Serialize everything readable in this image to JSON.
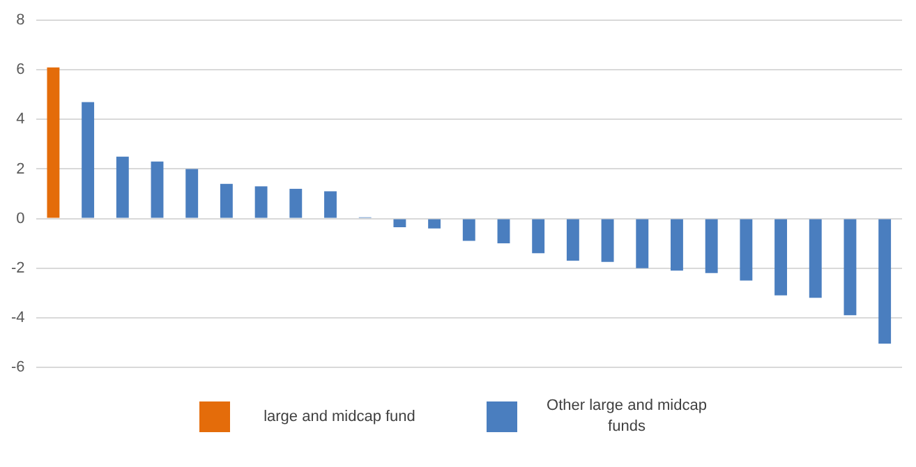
{
  "chart_data": {
    "type": "bar",
    "categories": [
      null,
      null,
      null,
      null,
      null,
      null,
      null,
      null,
      null,
      null,
      null,
      null,
      null,
      null,
      null,
      null,
      null,
      null,
      null,
      null,
      null,
      null,
      null,
      null,
      null
    ],
    "series": [
      {
        "name": "large and midcap fund",
        "color": "#e46c0a",
        "values": [
          6.1,
          null,
          null,
          null,
          null,
          null,
          null,
          null,
          null,
          null,
          null,
          null,
          null,
          null,
          null,
          null,
          null,
          null,
          null,
          null,
          null,
          null,
          null,
          null,
          null
        ]
      },
      {
        "name": "Other large and midcap funds",
        "color": "#4a7ebf",
        "values": [
          null,
          4.7,
          2.5,
          2.3,
          2.0,
          1.4,
          1.3,
          1.2,
          1.1,
          0.05,
          -0.35,
          -0.4,
          -0.9,
          -1.0,
          -1.4,
          -1.7,
          -1.75,
          -2.0,
          -2.1,
          -2.2,
          -2.5,
          -3.1,
          -3.2,
          -3.9,
          -5.05
        ]
      }
    ],
    "ylim": [
      -6,
      8
    ],
    "yticks": [
      -6,
      -4,
      -2,
      0,
      2,
      4,
      6,
      8
    ],
    "grid": "y",
    "legend": "bottom"
  }
}
